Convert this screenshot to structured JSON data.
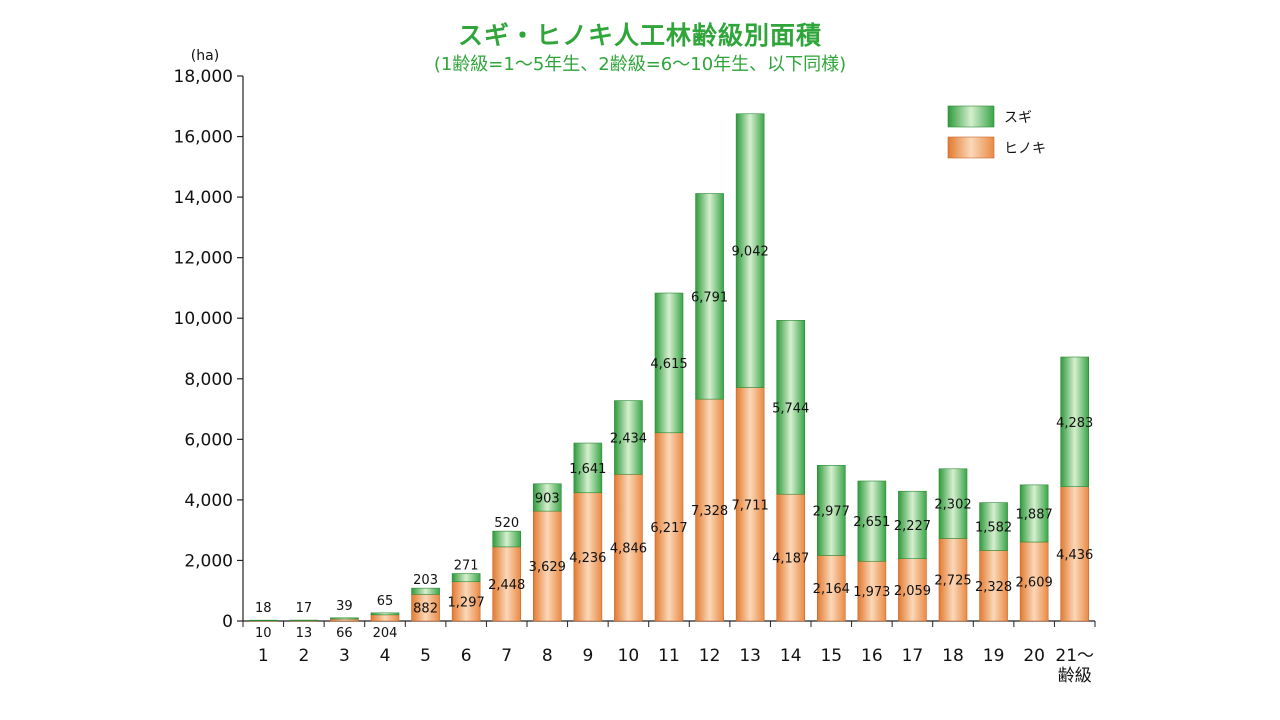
{
  "chart_data": {
    "type": "bar",
    "stacked": true,
    "title": "スギ・ヒノキ人工林齢級別面積",
    "subtitle": "(1齢級=1～5年生、2齢級=6～10年生、以下同様)",
    "y_unit": "(ha)",
    "xlabel": "齢級",
    "ylim": [
      0,
      18000
    ],
    "y_ticks": [
      "0",
      "2,000",
      "4,000",
      "6,000",
      "8,000",
      "10,000",
      "12,000",
      "14,000",
      "16,000",
      "18,000"
    ],
    "categories": [
      "1",
      "2",
      "3",
      "4",
      "5",
      "6",
      "7",
      "8",
      "9",
      "10",
      "11",
      "12",
      "13",
      "14",
      "15",
      "16",
      "17",
      "18",
      "19",
      "20",
      "21～"
    ],
    "series": [
      {
        "name": "ヒノキ",
        "color": "#e98a45",
        "values": [
          10,
          13,
          66,
          204,
          882,
          1297,
          2448,
          3629,
          4236,
          4846,
          6217,
          7328,
          7711,
          4187,
          2164,
          1973,
          2059,
          2725,
          2328,
          2609,
          4436
        ],
        "labels": [
          "10",
          "13",
          "66",
          "204",
          "882",
          "1,297",
          "2,448",
          "3,629",
          "4,236",
          "4,846",
          "6,217",
          "7,328",
          "7,711",
          "4,187",
          "2,164",
          "1,973",
          "2,059",
          "2,725",
          "2,328",
          "2,609",
          "4,436"
        ]
      },
      {
        "name": "スギ",
        "color": "#3aa548",
        "values": [
          18,
          17,
          39,
          65,
          203,
          271,
          520,
          903,
          1641,
          2434,
          4615,
          6791,
          9042,
          5744,
          2977,
          2651,
          2227,
          2302,
          1582,
          1887,
          4283
        ],
        "labels": [
          "18",
          "17",
          "39",
          "65",
          "203",
          "271",
          "520",
          "903",
          "1,641",
          "2,434",
          "4,615",
          "6,791",
          "9,042",
          "5,744",
          "2,977",
          "2,651",
          "2,227",
          "2,302",
          "1,582",
          "1,887",
          "4,283"
        ]
      }
    ],
    "legend": {
      "position": "top-right",
      "items": [
        "スギ",
        "ヒノキ"
      ]
    },
    "grid": false
  }
}
